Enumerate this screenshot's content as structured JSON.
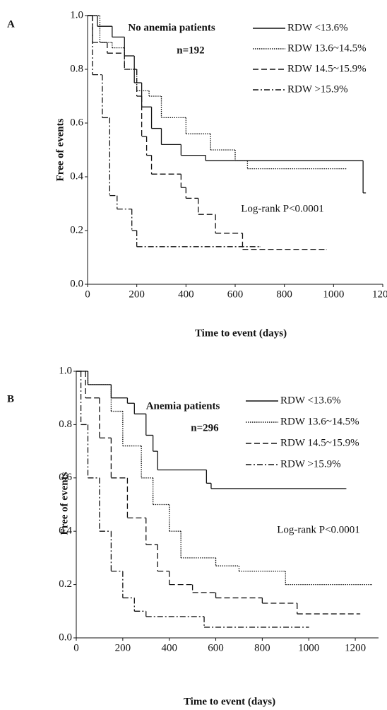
{
  "chart_data": [
    {
      "type": "line",
      "panel": "A",
      "title": "No anemia patients",
      "subtitle": "n=192",
      "annotation": "Log-rank P<0.0001",
      "xlabel": "Time to event (days)",
      "ylabel": "Free of events",
      "xlim": [
        0,
        1200
      ],
      "ylim": [
        0,
        1
      ],
      "xticks": [
        0,
        200,
        400,
        600,
        800,
        1000,
        1200
      ],
      "yticks": [
        {
          "value": 0,
          "label": "0.0"
        },
        0.2,
        0.4,
        0.6,
        0.8,
        {
          "value": 1,
          "label": "1.0"
        }
      ],
      "series": [
        {
          "name": "RDW <13.6%",
          "color": "#111",
          "style": "solid",
          "x": [
            0,
            40,
            100,
            150,
            190,
            220,
            260,
            300,
            380,
            480,
            1120,
            1130
          ],
          "values": [
            1,
            0.96,
            0.92,
            0.85,
            0.75,
            0.66,
            0.58,
            0.52,
            0.48,
            0.46,
            0.34,
            0.34
          ]
        },
        {
          "name": "RDW 13.6~14.5%",
          "color": "#111",
          "style": "dotted",
          "x": [
            0,
            50,
            100,
            150,
            200,
            250,
            300,
            400,
            500,
            600,
            650,
            1050
          ],
          "values": [
            1,
            0.9,
            0.88,
            0.8,
            0.72,
            0.7,
            0.62,
            0.56,
            0.5,
            0.46,
            0.43,
            0.43
          ]
        },
        {
          "name": "RDW 14.5~15.9%",
          "color": "#111",
          "style": "dashed",
          "x": [
            0,
            20,
            80,
            150,
            200,
            220,
            240,
            260,
            380,
            400,
            450,
            520,
            630,
            970
          ],
          "values": [
            1,
            0.9,
            0.86,
            0.8,
            0.7,
            0.55,
            0.48,
            0.41,
            0.36,
            0.32,
            0.26,
            0.19,
            0.13,
            0.13
          ]
        },
        {
          "name": "RDW >15.9%",
          "color": "#111",
          "style": "dashdot",
          "x": [
            0,
            20,
            60,
            90,
            120,
            180,
            200,
            700
          ],
          "values": [
            1,
            0.78,
            0.62,
            0.33,
            0.28,
            0.2,
            0.14,
            0.14
          ]
        }
      ]
    },
    {
      "type": "line",
      "panel": "B",
      "title": "Anemia patients",
      "subtitle": "n=296",
      "annotation": "Log-rank P<0.0001",
      "xlabel": "Time to event (days)",
      "ylabel": "Free of events",
      "xlim": [
        0,
        1300
      ],
      "ylim": [
        0,
        1
      ],
      "xticks": [
        0,
        200,
        400,
        600,
        800,
        1000,
        1200
      ],
      "yticks": [
        {
          "value": 0,
          "label": "0.0"
        },
        0.2,
        0.4,
        0.6,
        0.8,
        {
          "value": 1,
          "label": "1.0"
        }
      ],
      "series": [
        {
          "name": "RDW <13.6%",
          "color": "#111",
          "style": "solid",
          "x": [
            0,
            50,
            150,
            220,
            250,
            300,
            330,
            350,
            560,
            580,
            1160
          ],
          "values": [
            1,
            0.95,
            0.9,
            0.88,
            0.84,
            0.76,
            0.7,
            0.63,
            0.58,
            0.56,
            0.56
          ]
        },
        {
          "name": "RDW 13.6~14.5%",
          "color": "#111",
          "style": "dotted",
          "x": [
            0,
            50,
            150,
            200,
            280,
            330,
            400,
            450,
            600,
            700,
            900,
            1270
          ],
          "values": [
            1,
            0.95,
            0.85,
            0.72,
            0.6,
            0.5,
            0.4,
            0.3,
            0.27,
            0.25,
            0.2,
            0.2
          ]
        },
        {
          "name": "RDW 14.5~15.9%",
          "color": "#111",
          "style": "dashed",
          "x": [
            0,
            40,
            100,
            150,
            220,
            300,
            350,
            400,
            500,
            600,
            800,
            950,
            1220
          ],
          "values": [
            1,
            0.9,
            0.75,
            0.6,
            0.45,
            0.35,
            0.25,
            0.2,
            0.17,
            0.15,
            0.13,
            0.09,
            0.09
          ]
        },
        {
          "name": "RDW >15.9%",
          "color": "#111",
          "style": "dashdot",
          "x": [
            0,
            20,
            50,
            100,
            150,
            200,
            250,
            300,
            550,
            1000
          ],
          "values": [
            1,
            0.8,
            0.6,
            0.4,
            0.25,
            0.15,
            0.1,
            0.08,
            0.04,
            0.04
          ]
        }
      ]
    }
  ]
}
